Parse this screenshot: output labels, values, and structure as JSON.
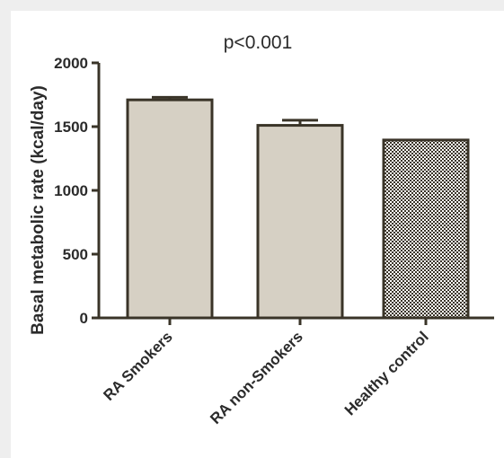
{
  "chart_data": {
    "type": "bar",
    "title": "p<0.001",
    "ylabel": "Basal metabolic rate (kcal/day)",
    "xlabel": "",
    "ylim": [
      0,
      2000
    ],
    "yticks": [
      0,
      500,
      1000,
      1500,
      2000
    ],
    "categories": [
      "RA Smokers",
      "RA non-Smokers",
      "Healthy control"
    ],
    "values": [
      1710,
      1510,
      1395
    ],
    "error_upper": [
      1730,
      1550,
      1395
    ],
    "fills": [
      "#d6d0c4",
      "#d6d0c4",
      "checkered"
    ],
    "colors": {
      "bar_fill": "#d6d0c4",
      "axis": "#3a3428",
      "frame_bg": "#eeeeee"
    },
    "grid": false
  }
}
